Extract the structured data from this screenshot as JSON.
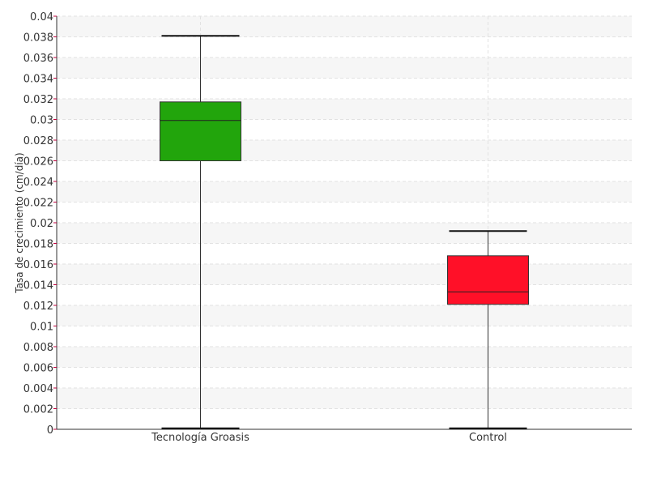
{
  "chart_data": {
    "type": "box",
    "ylabel": "Tasa de crecimiento (cm/día)",
    "ylim": [
      0,
      0.04
    ],
    "yticks": [
      "0",
      "0.002",
      "0.004",
      "0.006",
      "0.008",
      "0.01",
      "0.012",
      "0.014",
      "0.016",
      "0.018",
      "0.02",
      "0.022",
      "0.024",
      "0.026",
      "0.028",
      "0.03",
      "0.032",
      "0.034",
      "0.036",
      "0.038",
      "0.04"
    ],
    "grid": true,
    "categories": [
      "Tecnología Groasis",
      "Control"
    ],
    "series": [
      {
        "category": "Tecnología Groasis",
        "min": 0.0001,
        "q1": 0.026,
        "median": 0.0299,
        "q3": 0.0317,
        "max": 0.0381,
        "color": "#22a50c"
      },
      {
        "category": "Control",
        "min": 0.0001,
        "q1": 0.0121,
        "median": 0.0133,
        "q3": 0.0168,
        "max": 0.0192,
        "color": "#ff1028"
      }
    ]
  }
}
